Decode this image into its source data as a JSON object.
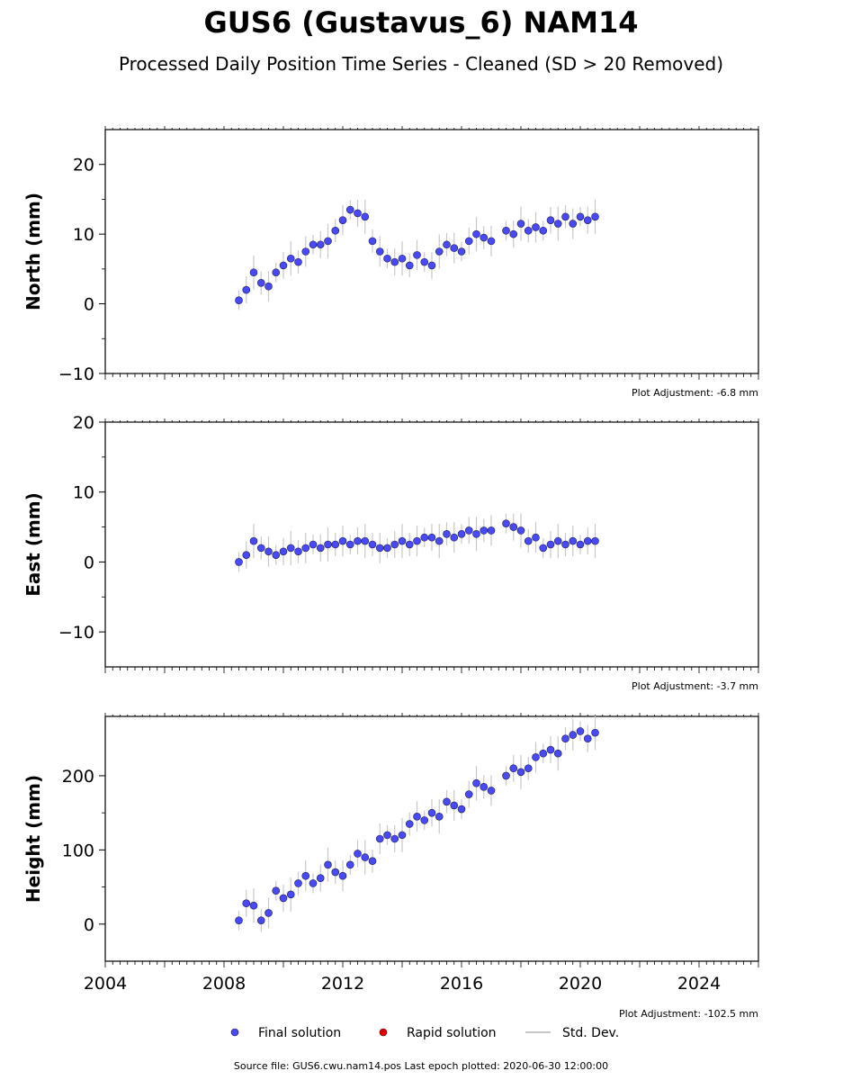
{
  "title": "GUS6 (Gustavus_6) NAM14",
  "subtitle": "Processed Daily Position Time Series - Cleaned (SD > 20 Removed)",
  "source_note": "Source file: GUS6.cwu.nam14.pos  Last epoch plotted: 2020-06-30 12:00:00",
  "legend": {
    "final": "Final solution",
    "rapid": "Rapid solution",
    "std": "Std. Dev.",
    "placement": "bottom-center"
  },
  "colors": {
    "final": "#4a4af4",
    "final_edge": "#1a1a5a",
    "rapid": "#e00000",
    "std": "#c8c8c8"
  },
  "chart_data": [
    {
      "type": "scatter",
      "ylabel": "North (mm)",
      "adjustment": "Plot Adjustment: -6.8 mm",
      "xlim": [
        2004,
        2026
      ],
      "ylim": [
        -10,
        25
      ],
      "yticks": [
        -10,
        0,
        10,
        20
      ],
      "yticklabels": [
        "−10",
        "0",
        "10",
        "20"
      ],
      "show_xticklabels": false,
      "series": [
        {
          "x": [
            2008.5,
            2008.75,
            2009.0,
            2009.25,
            2009.5,
            2009.75,
            2010.0,
            2010.25,
            2010.5,
            2010.75,
            2011.0,
            2011.25,
            2011.5,
            2011.75,
            2012.0,
            2012.25,
            2012.5,
            2012.75,
            2013.0,
            2013.25,
            2013.5,
            2013.75,
            2014.0,
            2014.25,
            2014.5,
            2014.75,
            2015.0,
            2015.25,
            2015.5,
            2015.75,
            2016.0,
            2016.25,
            2016.5,
            2016.75,
            2017.0,
            2017.5,
            2017.75,
            2018.0,
            2018.25,
            2018.5,
            2018.75,
            2019.0,
            2019.25,
            2019.5,
            2019.75,
            2020.0,
            2020.25,
            2020.5
          ],
          "y": [
            0.5,
            2.0,
            4.5,
            3.0,
            2.5,
            4.5,
            5.5,
            6.5,
            6.0,
            7.5,
            8.5,
            8.5,
            9.0,
            10.5,
            12.0,
            13.5,
            13.0,
            12.5,
            9.0,
            7.5,
            6.5,
            6.0,
            6.5,
            5.5,
            7.0,
            6.0,
            5.5,
            7.5,
            8.5,
            8.0,
            7.5,
            9.0,
            10.0,
            9.5,
            9.0,
            10.5,
            10.0,
            11.5,
            10.5,
            11.0,
            10.5,
            12.0,
            11.5,
            12.5,
            11.5,
            12.5,
            12.0,
            12.5
          ]
        }
      ]
    },
    {
      "type": "scatter",
      "ylabel": "East (mm)",
      "adjustment": "Plot Adjustment: -3.7 mm",
      "xlim": [
        2004,
        2026
      ],
      "ylim": [
        -15,
        20
      ],
      "yticks": [
        -10,
        0,
        10,
        20
      ],
      "yticklabels": [
        "−10",
        "0",
        "10",
        "20"
      ],
      "show_xticklabels": false,
      "series": [
        {
          "x": [
            2008.5,
            2008.75,
            2009.0,
            2009.25,
            2009.5,
            2009.75,
            2010.0,
            2010.25,
            2010.5,
            2010.75,
            2011.0,
            2011.25,
            2011.5,
            2011.75,
            2012.0,
            2012.25,
            2012.5,
            2012.75,
            2013.0,
            2013.25,
            2013.5,
            2013.75,
            2014.0,
            2014.25,
            2014.5,
            2014.75,
            2015.0,
            2015.25,
            2015.5,
            2015.75,
            2016.0,
            2016.25,
            2016.5,
            2016.75,
            2017.0,
            2017.5,
            2017.75,
            2018.0,
            2018.25,
            2018.5,
            2018.75,
            2019.0,
            2019.25,
            2019.5,
            2019.75,
            2020.0,
            2020.25,
            2020.5
          ],
          "y": [
            0.0,
            1.0,
            3.0,
            2.0,
            1.5,
            1.0,
            1.5,
            2.0,
            1.5,
            2.0,
            2.5,
            2.0,
            2.5,
            2.5,
            3.0,
            2.5,
            3.0,
            3.0,
            2.5,
            2.0,
            2.0,
            2.5,
            3.0,
            2.5,
            3.0,
            3.5,
            3.5,
            3.0,
            4.0,
            3.5,
            4.0,
            4.5,
            4.0,
            4.5,
            4.5,
            5.5,
            5.0,
            4.5,
            3.0,
            3.5,
            2.0,
            2.5,
            3.0,
            2.5,
            3.0,
            2.5,
            3.0,
            3.0
          ]
        }
      ]
    },
    {
      "type": "scatter",
      "ylabel": "Height (mm)",
      "adjustment": "Plot Adjustment: -102.5 mm",
      "xlim": [
        2004,
        2026
      ],
      "ylim": [
        -50,
        280
      ],
      "yticks": [
        0,
        100,
        200
      ],
      "yticklabels": [
        "0",
        "100",
        "200"
      ],
      "show_xticklabels": true,
      "xticks": [
        2004,
        2008,
        2012,
        2016,
        2020,
        2024
      ],
      "xticklabels": [
        "2004",
        "2008",
        "2012",
        "2016",
        "2020",
        "2024"
      ],
      "series": [
        {
          "x": [
            2008.5,
            2008.75,
            2009.0,
            2009.25,
            2009.5,
            2009.75,
            2010.0,
            2010.25,
            2010.5,
            2010.75,
            2011.0,
            2011.25,
            2011.5,
            2011.75,
            2012.0,
            2012.25,
            2012.5,
            2012.75,
            2013.0,
            2013.25,
            2013.5,
            2013.75,
            2014.0,
            2014.25,
            2014.5,
            2014.75,
            2015.0,
            2015.25,
            2015.5,
            2015.75,
            2016.0,
            2016.25,
            2016.5,
            2016.75,
            2017.0,
            2017.5,
            2017.75,
            2018.0,
            2018.25,
            2018.5,
            2018.75,
            2019.0,
            2019.25,
            2019.5,
            2019.75,
            2020.0,
            2020.25,
            2020.5
          ],
          "y": [
            5,
            28,
            25,
            5,
            15,
            45,
            35,
            40,
            55,
            65,
            55,
            62,
            80,
            70,
            65,
            80,
            95,
            90,
            85,
            115,
            120,
            115,
            120,
            135,
            145,
            140,
            150,
            145,
            165,
            160,
            155,
            175,
            190,
            185,
            180,
            200,
            210,
            205,
            210,
            225,
            230,
            235,
            230,
            250,
            255,
            260,
            250,
            258
          ]
        }
      ]
    }
  ]
}
